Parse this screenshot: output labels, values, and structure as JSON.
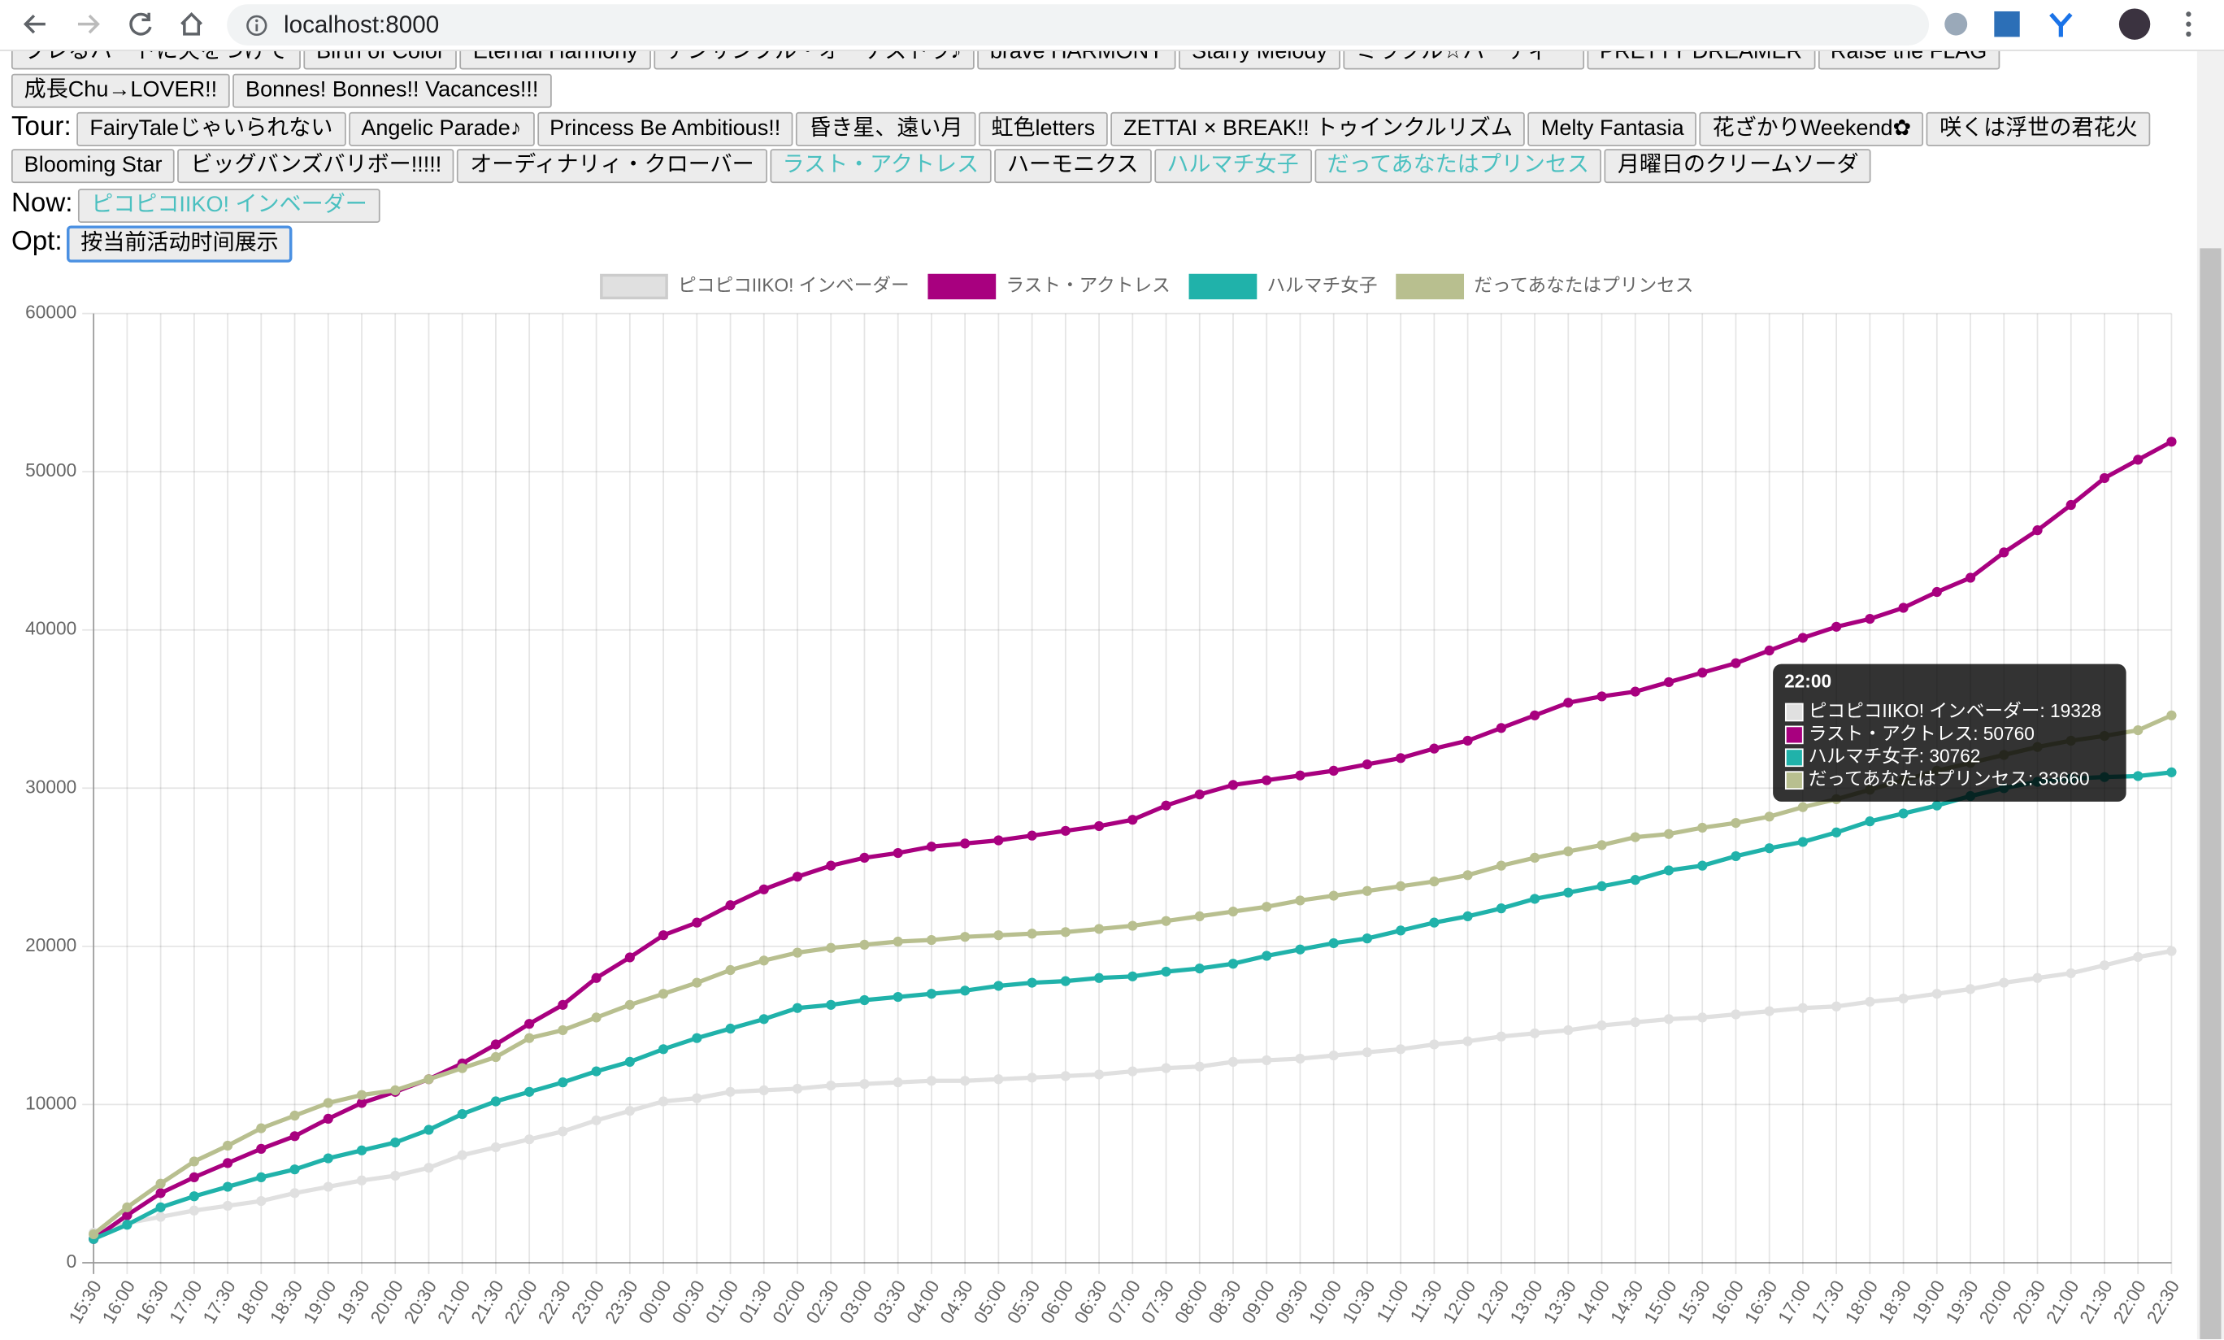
{
  "browser": {
    "url": "localhost:8000"
  },
  "buttons": {
    "highlight_color": "#4bc0c0",
    "top": [
      {
        "label": "ブレるハートに火をつけて"
      },
      {
        "label": "Birth of Color"
      },
      {
        "label": "Eternal Harmony"
      },
      {
        "label": "アンサンブル・オーケストラ♪"
      },
      {
        "label": "brave HARMONY"
      },
      {
        "label": "Starry Melody"
      },
      {
        "label": "ミラクル☆パーティー"
      },
      {
        "label": "PRETTY DREAMER"
      },
      {
        "label": "Raise the FLAG"
      },
      {
        "label": "成長Chu→LOVER!!"
      },
      {
        "label": "Bonnes! Bonnes!! Vacances!!!"
      }
    ],
    "tour_label": "Tour:",
    "tour": [
      {
        "label": "FairyTaleじゃいられない"
      },
      {
        "label": "Angelic Parade♪"
      },
      {
        "label": "Princess Be Ambitious!!"
      },
      {
        "label": "昏き星、遠い月"
      },
      {
        "label": "虹色letters"
      },
      {
        "label": "ZETTAI × BREAK!! トゥインクルリズム"
      },
      {
        "label": "Melty Fantasia"
      },
      {
        "label": "花ざかりWeekend✿"
      },
      {
        "label": "咲くは浮世の君花火"
      },
      {
        "label": "Blooming Star"
      },
      {
        "label": "ビッグバンズバリボー!!!!!"
      },
      {
        "label": "オーディナリィ・クローバー"
      },
      {
        "label": "ラスト・アクトレス",
        "highlighted": true
      },
      {
        "label": "ハーモニクス"
      },
      {
        "label": "ハルマチ女子",
        "highlighted": true
      },
      {
        "label": "だってあなたはプリンセス",
        "highlighted": true
      },
      {
        "label": "月曜日のクリームソーダ"
      }
    ],
    "now_label": "Now:",
    "now": [
      {
        "label": "ピコピコIIKO! インベーダー",
        "highlighted": true
      }
    ],
    "opt_label": "Opt:",
    "opt": [
      {
        "label": "按当前活动时间展示",
        "focused": true
      }
    ]
  },
  "chart_data": {
    "type": "line",
    "x": [
      "15:30",
      "16:00",
      "16:30",
      "17:00",
      "17:30",
      "18:00",
      "18:30",
      "19:00",
      "19:30",
      "20:00",
      "20:30",
      "21:00",
      "21:30",
      "22:00",
      "22:30",
      "23:00",
      "23:30",
      "00:00",
      "00:30",
      "01:00",
      "01:30",
      "02:00",
      "02:30",
      "03:00",
      "03:30",
      "04:00",
      "04:30",
      "05:00",
      "05:30",
      "06:00",
      "06:30",
      "07:00",
      "07:30",
      "08:00",
      "08:30",
      "09:00",
      "09:30",
      "10:00",
      "10:30",
      "11:00",
      "11:30",
      "12:00",
      "12:30",
      "13:00",
      "13:30",
      "14:00",
      "14:30",
      "15:00",
      "15:30",
      "16:00",
      "16:30",
      "17:00",
      "17:30",
      "18:00",
      "18:30",
      "19:00",
      "19:30",
      "20:00",
      "20:30",
      "21:00",
      "21:30",
      "22:00",
      "22:30"
    ],
    "series": [
      {
        "name": "ピコピコIIKO! インベーダー",
        "color": "#e0e0e0",
        "values": [
          1900,
          2500,
          2900,
          3300,
          3600,
          3900,
          4400,
          4800,
          5200,
          5500,
          6000,
          6800,
          7300,
          7800,
          8300,
          9000,
          9600,
          10200,
          10400,
          10800,
          10900,
          11000,
          11200,
          11300,
          11400,
          11500,
          11500,
          11600,
          11700,
          11800,
          11900,
          12100,
          12300,
          12400,
          12700,
          12800,
          12900,
          13100,
          13300,
          13500,
          13800,
          14000,
          14300,
          14500,
          14700,
          15000,
          15200,
          15400,
          15500,
          15700,
          15900,
          16100,
          16200,
          16500,
          16700,
          17000,
          17300,
          17700,
          18000,
          18300,
          18800,
          19328,
          19700
        ]
      },
      {
        "name": "ラスト・アクトレス",
        "color": "#a8007f",
        "values": [
          1500,
          3000,
          4400,
          5400,
          6300,
          7200,
          8000,
          9100,
          10100,
          10800,
          11600,
          12600,
          13800,
          15100,
          16300,
          18000,
          19300,
          20700,
          21500,
          22600,
          23600,
          24400,
          25100,
          25600,
          25900,
          26300,
          26500,
          26700,
          27000,
          27300,
          27600,
          28000,
          28900,
          29600,
          30200,
          30500,
          30800,
          31100,
          31500,
          31900,
          32500,
          33000,
          33800,
          34600,
          35400,
          35800,
          36100,
          36700,
          37300,
          37900,
          38700,
          39500,
          40200,
          40700,
          41400,
          42400,
          43300,
          44900,
          46300,
          47900,
          49600,
          50760,
          51900
        ]
      },
      {
        "name": "ハルマチ女子",
        "color": "#20b2aa",
        "values": [
          1500,
          2400,
          3500,
          4200,
          4800,
          5400,
          5900,
          6600,
          7100,
          7600,
          8400,
          9400,
          10200,
          10800,
          11400,
          12100,
          12700,
          13500,
          14200,
          14800,
          15400,
          16100,
          16300,
          16600,
          16800,
          17000,
          17200,
          17500,
          17700,
          17800,
          18000,
          18100,
          18400,
          18600,
          18900,
          19400,
          19800,
          20200,
          20500,
          21000,
          21500,
          21900,
          22400,
          23000,
          23400,
          23800,
          24200,
          24800,
          25100,
          25700,
          26200,
          26600,
          27200,
          27900,
          28400,
          28900,
          29500,
          30000,
          30400,
          30600,
          30700,
          30762,
          31000
        ]
      },
      {
        "name": "だってあなたはプリンセス",
        "color": "#b8bf8f",
        "values": [
          1800,
          3500,
          5000,
          6400,
          7400,
          8500,
          9300,
          10100,
          10600,
          10900,
          11600,
          12300,
          13000,
          14200,
          14700,
          15500,
          16300,
          17000,
          17700,
          18500,
          19100,
          19600,
          19900,
          20100,
          20300,
          20400,
          20600,
          20700,
          20800,
          20900,
          21100,
          21300,
          21600,
          21900,
          22200,
          22500,
          22900,
          23200,
          23500,
          23800,
          24100,
          24500,
          25100,
          25600,
          26000,
          26400,
          26900,
          27100,
          27500,
          27800,
          28200,
          28800,
          29300,
          29900,
          30500,
          31100,
          31600,
          32100,
          32600,
          33000,
          33300,
          33660,
          34600
        ]
      }
    ],
    "ylim": [
      0,
      60000
    ],
    "yticks": [
      0,
      10000,
      20000,
      30000,
      40000,
      50000,
      60000
    ],
    "grid": true,
    "legend": "top",
    "tooltip": {
      "title": "22:00",
      "lines": [
        "ピコピコIIKO! インベーダー: 19328",
        "ラスト・アクトレス: 50760",
        "ハルマチ女子: 30762",
        "だってあなたはプリンセス: 33660"
      ]
    }
  }
}
